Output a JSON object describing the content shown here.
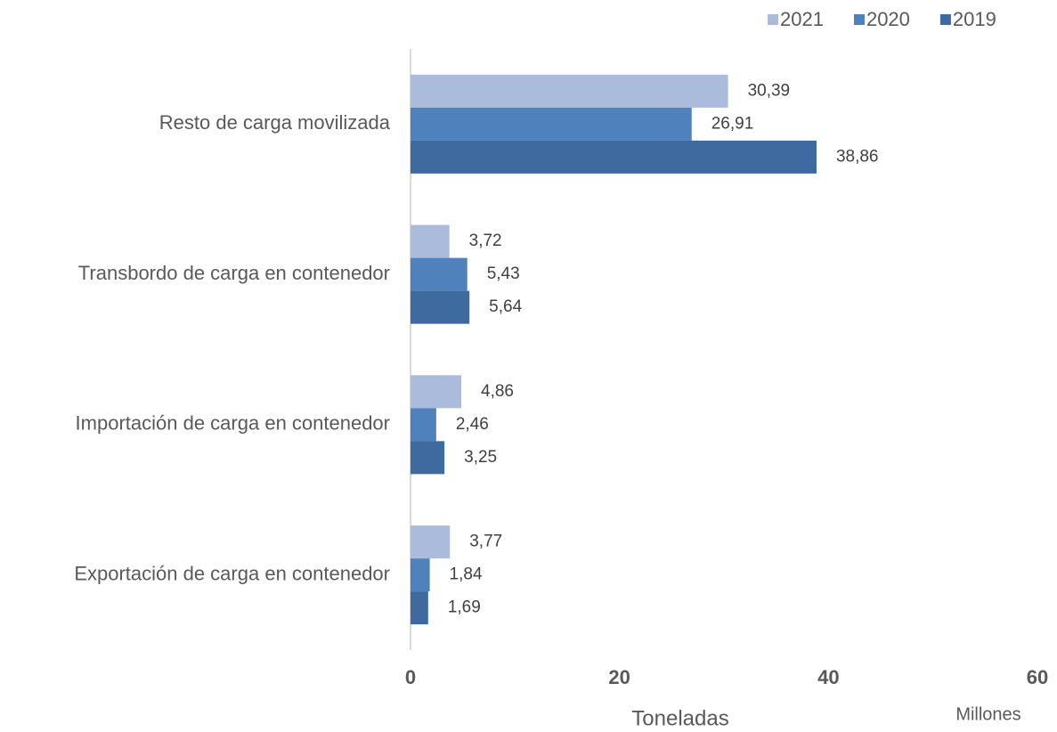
{
  "chart_data": {
    "type": "barh",
    "categories": [
      "Resto  de carga movilizada",
      "Transbordo de carga en contenedor",
      "Importación de carga en contenedor",
      "Exportación de carga en contenedor"
    ],
    "series": [
      {
        "name": "2021",
        "color": "#abbbdb",
        "values": [
          30.39,
          3.72,
          4.86,
          3.77
        ],
        "value_labels": [
          "30,39",
          "3,72",
          "4,86",
          "3,77"
        ]
      },
      {
        "name": "2020",
        "color": "#4f81bd",
        "values": [
          26.91,
          5.43,
          2.46,
          1.84
        ],
        "value_labels": [
          "26,91",
          "5,43",
          "2,46",
          "1,84"
        ]
      },
      {
        "name": "2019",
        "color": "#3e6a9f",
        "values": [
          38.86,
          5.64,
          3.25,
          1.69
        ],
        "value_labels": [
          "38,86",
          "5,64",
          "3,25",
          "1,69"
        ]
      }
    ],
    "xlim": [
      0,
      60
    ],
    "xticks": [
      0,
      20,
      40,
      60
    ],
    "x_label": "Toneladas",
    "x_unit_label": "Millones",
    "legend": "top-right"
  }
}
